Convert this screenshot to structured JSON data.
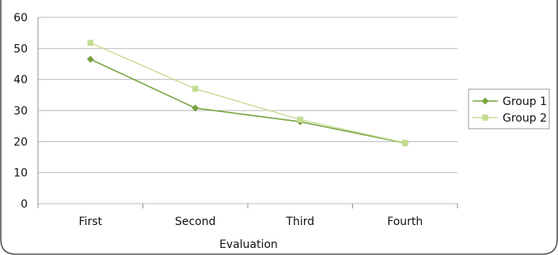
{
  "chart_data": {
    "type": "line",
    "title": "",
    "xlabel": "Evaluation",
    "ylabel": "",
    "categories": [
      "First",
      "Second",
      "Third",
      "Fourth"
    ],
    "yticks": [
      0,
      10,
      20,
      30,
      40,
      50,
      60
    ],
    "ylim": [
      0,
      60
    ],
    "grid": true,
    "legend_position": "right",
    "series": [
      {
        "name": "Group 1",
        "values": [
          46.5,
          30.8,
          26.4,
          19.5
        ],
        "color": "#77a33f",
        "marker": "diamond"
      },
      {
        "name": "Group 2",
        "values": [
          51.8,
          37.0,
          27.1,
          19.6
        ],
        "color": "#c3dc93",
        "marker": "square"
      }
    ]
  }
}
